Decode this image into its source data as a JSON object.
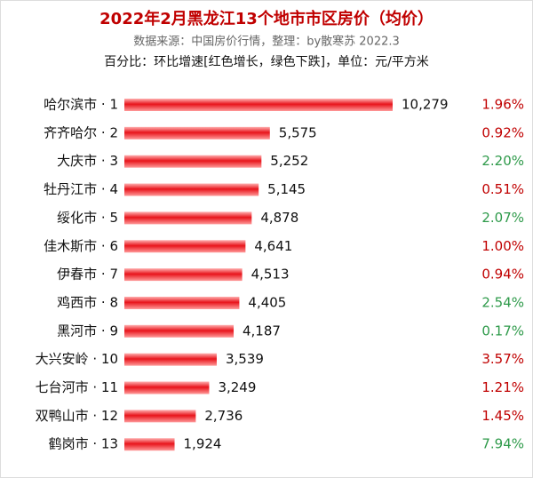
{
  "chart_data": {
    "type": "bar",
    "title": "2022年2月黑龙江13个地市市区房价（均价）",
    "subtitle": "数据来源：中国房价行情，整理：by散寒苏 2022.3",
    "note": "百分比：环比增速[红色增长，绿色下跌]，单位：元/平方米",
    "color": "#e8141b",
    "categories": [
      "哈尔滨市 · 1",
      "齐齐哈尔 · 2",
      "大庆市 · 3",
      "牡丹江市 · 4",
      "绥化市 · 5",
      "佳木斯市 · 6",
      "伊春市 · 7",
      "鸡西市 · 8",
      "黑河市 · 9",
      "大兴安岭 · 10",
      "七台河市 · 11",
      "双鸭山市 · 12",
      "鹤岗市 · 13"
    ],
    "values": [
      10279,
      5575,
      5252,
      5145,
      4878,
      4641,
      4513,
      4405,
      4187,
      3539,
      3249,
      2736,
      1924
    ],
    "value_labels": [
      "10,279",
      "5,575",
      "5,252",
      "5,145",
      "4,878",
      "4,641",
      "4,513",
      "4,405",
      "4,187",
      "3,539",
      "3,249",
      "2,736",
      "1,924"
    ],
    "changes": {
      "values": [
        1.96,
        0.92,
        2.2,
        0.51,
        2.07,
        1.0,
        0.94,
        2.54,
        0.17,
        3.57,
        1.21,
        1.45,
        7.94
      ],
      "value_labels": [
        "1.96%",
        "0.92%",
        "2.20%",
        "0.51%",
        "2.07%",
        "1.00%",
        "0.94%",
        "2.54%",
        "0.17%",
        "3.57%",
        "1.21%",
        "1.45%",
        "7.94%"
      ],
      "colors": [
        "#c00000",
        "#c00000",
        "#2e9a4a",
        "#c00000",
        "#2e9a4a",
        "#c00000",
        "#c00000",
        "#2e9a4a",
        "#2e9a4a",
        "#c00000",
        "#c00000",
        "#c00000",
        "#2e9a4a"
      ]
    }
  }
}
